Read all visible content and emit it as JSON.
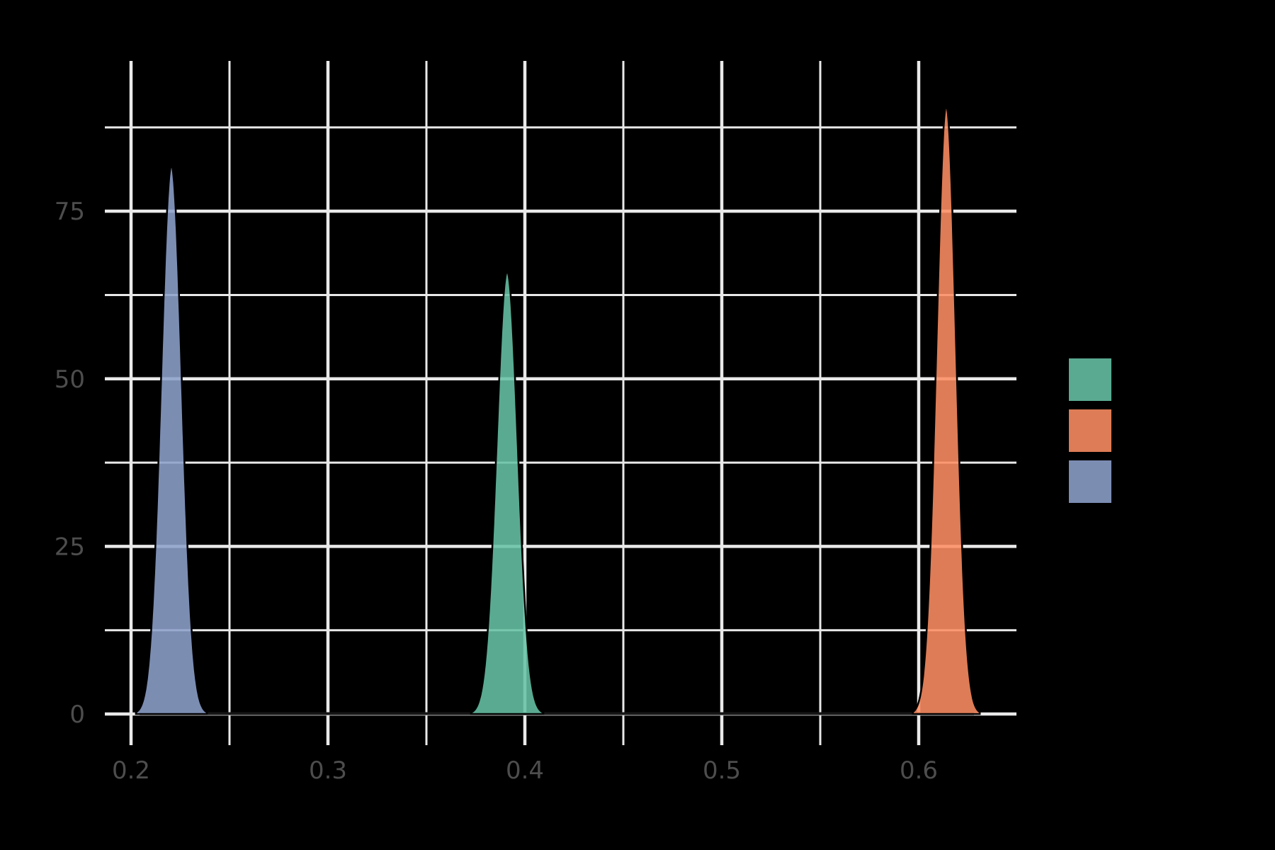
{
  "chart_data": {
    "type": "area",
    "subtype": "kernel-density",
    "title": "",
    "xlabel": "",
    "ylabel": "",
    "x_axis": {
      "tick_labels": [
        "0.2",
        "0.3",
        "0.4",
        "0.5",
        "0.6"
      ],
      "tick_values": [
        0.2,
        0.3,
        0.4,
        0.5,
        0.6
      ],
      "minor_step": 0.05,
      "range": [
        0.1867,
        0.6497
      ]
    },
    "y_axis": {
      "tick_labels": [
        "0",
        "25",
        "50",
        "75"
      ],
      "tick_values": [
        0,
        25,
        50,
        75
      ],
      "minor_step": 12.5,
      "range": [
        0,
        97.4
      ]
    },
    "grid": true,
    "legend_position": "right",
    "series": [
      {
        "name": "series-green",
        "color": "#66C2A5",
        "mode_x": 0.391,
        "peak_density": 66.0,
        "approx_sigma": 0.0054
      },
      {
        "name": "series-orange",
        "color": "#FC8D62",
        "mode_x": 0.614,
        "peak_density": 90.7,
        "approx_sigma": 0.005
      },
      {
        "name": "series-blue",
        "color": "#8DA0CB",
        "mode_x": 0.2205,
        "peak_density": 81.8,
        "approx_sigma": 0.0053
      }
    ]
  },
  "legend": {
    "swatches": [
      {
        "name": "legend-swatch-green",
        "color": "#66C2A5"
      },
      {
        "name": "legend-swatch-orange",
        "color": "#FC8D62"
      },
      {
        "name": "legend-swatch-blue",
        "color": "#8DA0CB"
      }
    ]
  },
  "style": {
    "background": "#000000",
    "grid_color": "#e9e9e9",
    "tick_label_color": "#4d4d4d",
    "curve_outline_color": "#000000",
    "baseline_color": "#161616",
    "fill_opacity": 0.88
  }
}
